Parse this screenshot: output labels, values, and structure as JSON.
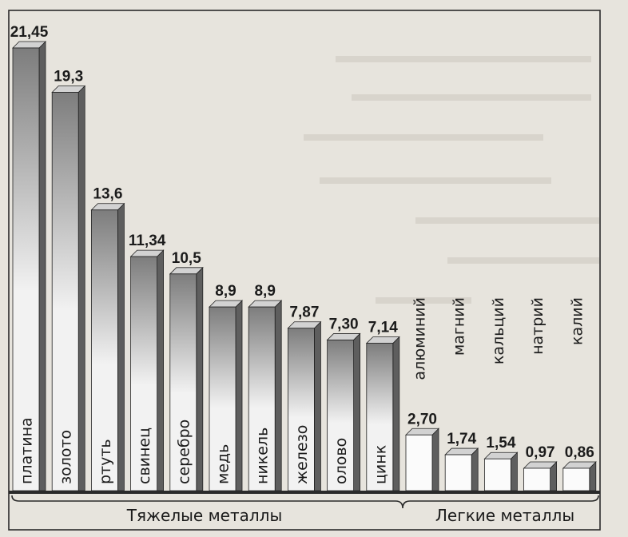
{
  "chart_data": {
    "type": "bar",
    "categories": [
      "платина",
      "золото",
      "ртуть",
      "свинец",
      "серебро",
      "медь",
      "никель",
      "железо",
      "олово",
      "цинк",
      "алюминий",
      "магний",
      "кальций",
      "натрий",
      "калий"
    ],
    "value_labels": [
      "21,45",
      "19,3",
      "13,6",
      "11,34",
      "10,5",
      "8,9",
      "8,9",
      "7,87",
      "7,30",
      "7,14",
      "2,70",
      "1,74",
      "1,54",
      "0,97",
      "0,86"
    ],
    "values": [
      21.45,
      19.3,
      13.6,
      11.34,
      10.5,
      8.9,
      8.9,
      7.87,
      7.3,
      7.14,
      2.7,
      1.74,
      1.54,
      0.97,
      0.86
    ],
    "groups": [
      {
        "label": "Тяжелые металлы",
        "count": 10
      },
      {
        "label": "Легкие металлы",
        "count": 5
      }
    ],
    "ylim": [
      0,
      22
    ],
    "colors": {
      "heavy_light": "#f2f2f2",
      "heavy_dark": "#7d7d7d",
      "side": "#5e5e5e",
      "top": "#d2d2d2",
      "light_face": "#fbfbfb",
      "frame": "#2a2a2a"
    }
  }
}
